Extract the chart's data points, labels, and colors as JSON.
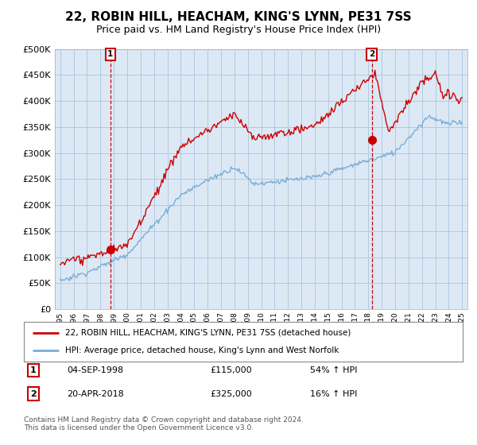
{
  "title": "22, ROBIN HILL, HEACHAM, KING'S LYNN, PE31 7SS",
  "subtitle": "Price paid vs. HM Land Registry's House Price Index (HPI)",
  "title_fontsize": 11,
  "subtitle_fontsize": 9,
  "background_color": "#ffffff",
  "chart_bg_color": "#dce9f5",
  "grid_color": "#b0c8e0",
  "red_color": "#cc0000",
  "blue_color": "#7aadd4",
  "legend_entry1": "22, ROBIN HILL, HEACHAM, KING'S LYNN, PE31 7SS (detached house)",
  "legend_entry2": "HPI: Average price, detached house, King's Lynn and West Norfolk",
  "table_row1": [
    "1",
    "04-SEP-1998",
    "£115,000",
    "54% ↑ HPI"
  ],
  "table_row2": [
    "2",
    "20-APR-2018",
    "£325,000",
    "16% ↑ HPI"
  ],
  "footer": "Contains HM Land Registry data © Crown copyright and database right 2024.\nThis data is licensed under the Open Government Licence v3.0.",
  "ylim": [
    0,
    500000
  ],
  "yticks": [
    0,
    50000,
    100000,
    150000,
    200000,
    250000,
    300000,
    350000,
    400000,
    450000,
    500000
  ],
  "sale1_year": 1998.75,
  "sale1_val": 115000,
  "sale2_year": 2018.25,
  "sale2_val": 325000
}
